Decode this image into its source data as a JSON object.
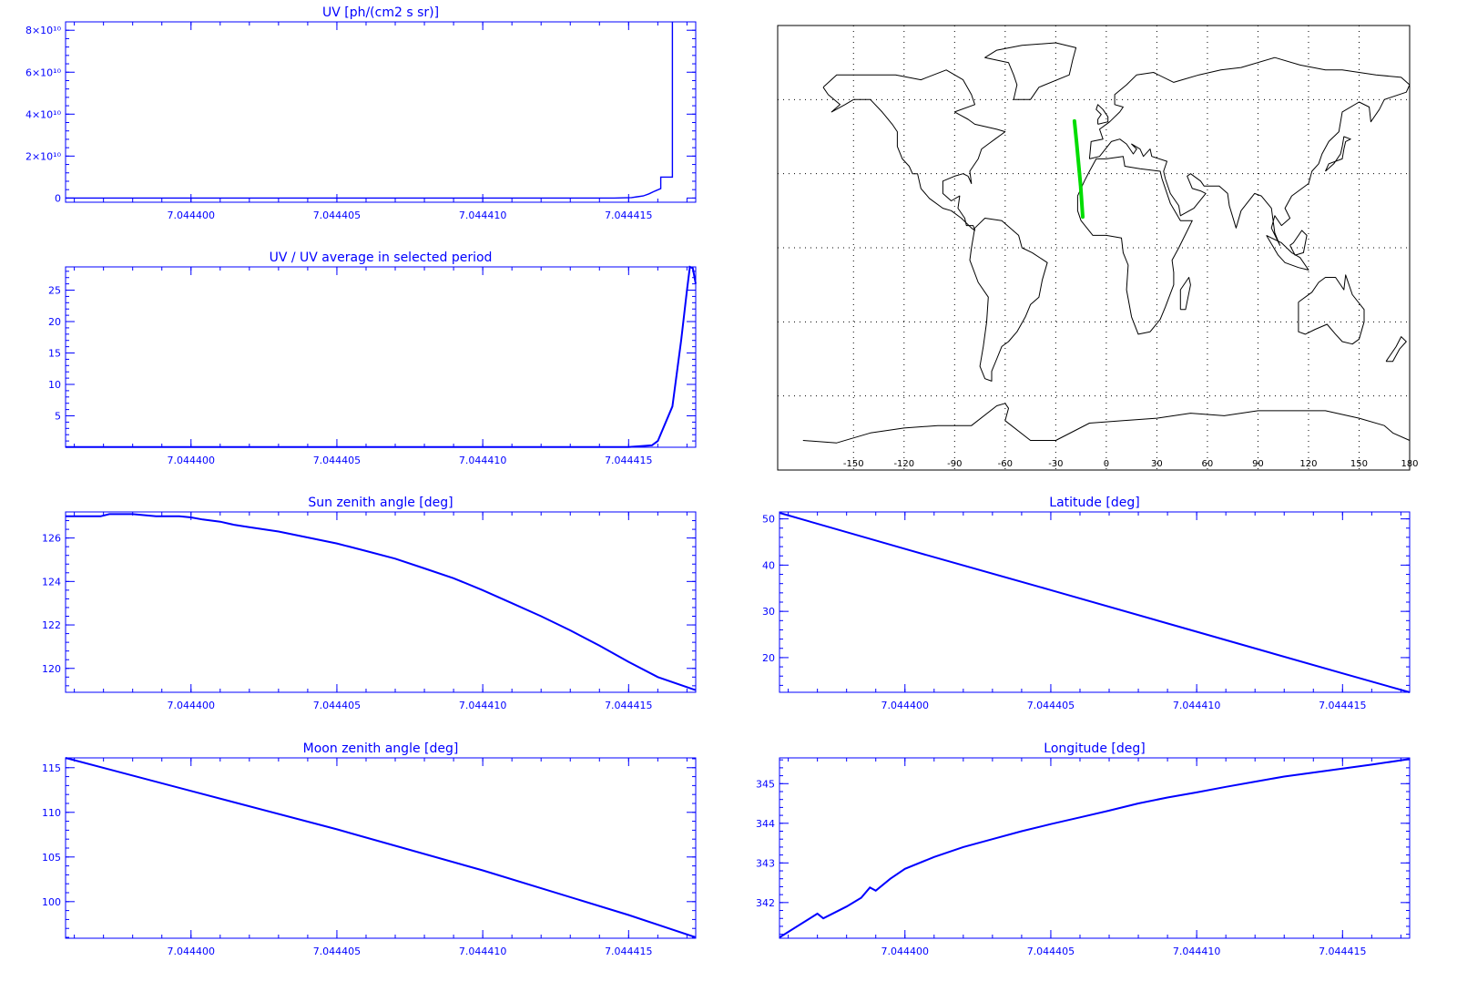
{
  "colors": {
    "axis": "#0000ff",
    "series": "#0000ff",
    "track": "#00dd00",
    "map": "#000000"
  },
  "chart_data": [
    {
      "id": "uv",
      "type": "line",
      "title": "UV [ph/(cm2 s sr)]",
      "xlim": [
        7.0443957,
        7.0444173
      ],
      "ylim": [
        -2000000000,
        84000000000
      ],
      "xticks": [
        {
          "v": 7.0444,
          "label": "7.044400"
        },
        {
          "v": 7.044405,
          "label": "7.044405"
        },
        {
          "v": 7.04441,
          "label": "7.044410"
        },
        {
          "v": 7.044415,
          "label": "7.044415"
        }
      ],
      "yticks": [
        {
          "v": 0,
          "label": "0"
        },
        {
          "v": 20000000000,
          "label": "2×10¹⁰"
        },
        {
          "v": 40000000000,
          "label": "4×10¹⁰"
        },
        {
          "v": 60000000000,
          "label": "6×10¹⁰"
        },
        {
          "v": 80000000000,
          "label": "8×10¹⁰"
        }
      ],
      "series": [
        {
          "x": [
            7.0443957,
            7.04441,
            7.0444145,
            7.0444151,
            7.0444153,
            7.0444155,
            7.0444157,
            7.0444159,
            7.0444161,
            7.0444161,
            7.0444161,
            7.0444165,
            7.0444165,
            7.0444165
          ],
          "y": [
            0,
            0,
            10000000,
            200000000,
            600000000,
            1000000000,
            2000000000,
            3300000000,
            4500000000,
            10000000000,
            10000000000,
            10000000000,
            84000000000,
            84000000000
          ]
        }
      ]
    },
    {
      "id": "ratio",
      "type": "line",
      "title": "UV / UV average in selected period",
      "xlim": [
        7.0443957,
        7.0444173
      ],
      "ylim": [
        0,
        28.7
      ],
      "xticks": [
        {
          "v": 7.0444,
          "label": "7.044400"
        },
        {
          "v": 7.044405,
          "label": "7.044405"
        },
        {
          "v": 7.04441,
          "label": "7.044410"
        },
        {
          "v": 7.044415,
          "label": "7.044415"
        }
      ],
      "yticks": [
        {
          "v": 5,
          "label": "5"
        },
        {
          "v": 10,
          "label": "10"
        },
        {
          "v": 15,
          "label": "15"
        },
        {
          "v": 20,
          "label": "20"
        },
        {
          "v": 25,
          "label": "25"
        }
      ],
      "series": [
        {
          "x": [
            7.0443957,
            7.044415,
            7.0444158,
            7.044416,
            7.0444165,
            7.0444168,
            7.044417,
            7.0444171,
            7.0444172,
            7.0444173
          ],
          "y": [
            0.05,
            0.05,
            0.3,
            1.0,
            6.5,
            17,
            25,
            28.7,
            28.5,
            26
          ]
        }
      ]
    },
    {
      "id": "sza",
      "type": "line",
      "title": "Sun zenith angle [deg]",
      "xlim": [
        7.0443957,
        7.0444173
      ],
      "ylim": [
        118.9,
        127.2
      ],
      "xticks": [
        {
          "v": 7.0444,
          "label": "7.044400"
        },
        {
          "v": 7.044405,
          "label": "7.044405"
        },
        {
          "v": 7.04441,
          "label": "7.044410"
        },
        {
          "v": 7.044415,
          "label": "7.044415"
        }
      ],
      "yticks": [
        {
          "v": 120,
          "label": "120"
        },
        {
          "v": 122,
          "label": "122"
        },
        {
          "v": 124,
          "label": "124"
        },
        {
          "v": 126,
          "label": "126"
        }
      ],
      "series": [
        {
          "x": [
            7.0443957,
            7.0443969,
            7.0443972,
            7.044398,
            7.0443988,
            7.0443996,
            7.0444,
            7.0444004,
            7.044401,
            7.0444015,
            7.044402,
            7.044403,
            7.044405,
            7.044406,
            7.044407,
            7.044408,
            7.044409,
            7.04441,
            7.044411,
            7.044412,
            7.044413,
            7.044414,
            7.044415,
            7.044416,
            7.0444173
          ],
          "y": [
            127.0,
            127.0,
            127.1,
            127.1,
            127.0,
            127.0,
            126.95,
            126.85,
            126.75,
            126.6,
            126.5,
            126.3,
            125.75,
            125.4,
            125.05,
            124.6,
            124.15,
            123.6,
            123.0,
            122.4,
            121.75,
            121.05,
            120.3,
            119.6,
            119.0
          ]
        }
      ]
    },
    {
      "id": "lat",
      "type": "line",
      "title": "Latitude [deg]",
      "xlim": [
        7.0443957,
        7.0444173
      ],
      "ylim": [
        12.5,
        51.5
      ],
      "xticks": [
        {
          "v": 7.0444,
          "label": "7.044400"
        },
        {
          "v": 7.044405,
          "label": "7.044405"
        },
        {
          "v": 7.04441,
          "label": "7.044410"
        },
        {
          "v": 7.044415,
          "label": "7.044415"
        }
      ],
      "yticks": [
        {
          "v": 20,
          "label": "20"
        },
        {
          "v": 30,
          "label": "30"
        },
        {
          "v": 40,
          "label": "40"
        },
        {
          "v": 50,
          "label": "50"
        }
      ],
      "series": [
        {
          "x": [
            7.0443957,
            7.0444,
            7.044405,
            7.04441,
            7.044415,
            7.0444173
          ],
          "y": [
            51.3,
            43.5,
            34.6,
            25.6,
            16.6,
            12.5
          ]
        }
      ]
    },
    {
      "id": "mza",
      "type": "line",
      "title": "Moon zenith angle [deg]",
      "xlim": [
        7.0443957,
        7.0444173
      ],
      "ylim": [
        95.9,
        116.1
      ],
      "xticks": [
        {
          "v": 7.0444,
          "label": "7.044400"
        },
        {
          "v": 7.044405,
          "label": "7.044405"
        },
        {
          "v": 7.04441,
          "label": "7.044410"
        },
        {
          "v": 7.044415,
          "label": "7.044415"
        }
      ],
      "yticks": [
        {
          "v": 100,
          "label": "100"
        },
        {
          "v": 105,
          "label": "105"
        },
        {
          "v": 110,
          "label": "110"
        },
        {
          "v": 115,
          "label": "115"
        }
      ],
      "series": [
        {
          "x": [
            7.0443957,
            7.0444,
            7.044405,
            7.04441,
            7.044415,
            7.0444173
          ],
          "y": [
            116.1,
            112.4,
            108.1,
            103.5,
            98.5,
            96.0
          ]
        }
      ]
    },
    {
      "id": "lon",
      "type": "line",
      "title": "Longitude [deg]",
      "xlim": [
        7.0443957,
        7.0444173
      ],
      "ylim": [
        341.1,
        345.65
      ],
      "xticks": [
        {
          "v": 7.0444,
          "label": "7.044400"
        },
        {
          "v": 7.044405,
          "label": "7.044405"
        },
        {
          "v": 7.04441,
          "label": "7.044410"
        },
        {
          "v": 7.044415,
          "label": "7.044415"
        }
      ],
      "yticks": [
        {
          "v": 342,
          "label": "342"
        },
        {
          "v": 343,
          "label": "343"
        },
        {
          "v": 344,
          "label": "344"
        },
        {
          "v": 345,
          "label": "345"
        }
      ],
      "series": [
        {
          "x": [
            7.0443957,
            7.044397,
            7.0443972,
            7.044398,
            7.0443985,
            7.0443988,
            7.044399,
            7.0443995,
            7.0444,
            7.044401,
            7.044402,
            7.044403,
            7.044404,
            7.044405,
            7.044406,
            7.044407,
            7.044408,
            7.044409,
            7.04441,
            7.044411,
            7.044412,
            7.044413,
            7.044414,
            7.044415,
            7.044416,
            7.0444173
          ],
          "y": [
            341.12,
            341.72,
            341.6,
            341.9,
            342.12,
            342.38,
            342.3,
            342.6,
            342.85,
            343.15,
            343.4,
            343.6,
            343.8,
            343.98,
            344.15,
            344.32,
            344.5,
            344.65,
            344.78,
            344.92,
            345.05,
            345.18,
            345.28,
            345.38,
            345.48,
            345.62
          ]
        }
      ]
    },
    {
      "id": "map",
      "type": "map",
      "xlim": [
        -180,
        180
      ],
      "ylim": [
        -90,
        90
      ],
      "xticks": [
        {
          "v": -150,
          "label": "-150"
        },
        {
          "v": -120,
          "label": "-120"
        },
        {
          "v": -90,
          "label": "-90"
        },
        {
          "v": -60,
          "label": "-60"
        },
        {
          "v": -30,
          "label": "-30"
        },
        {
          "v": 0,
          "label": "0"
        },
        {
          "v": 30,
          "label": "30"
        },
        {
          "v": 60,
          "label": "60"
        },
        {
          "v": 90,
          "label": "90"
        },
        {
          "v": 120,
          "label": "120"
        },
        {
          "v": 150,
          "label": "150"
        },
        {
          "v": 180,
          "label": "180"
        }
      ],
      "grid_lat": [
        -60,
        -30,
        0,
        30,
        60
      ],
      "track": {
        "lon": [
          -18.9,
          -17.6,
          -16.4,
          -15.2,
          -14.0
        ],
        "lat": [
          51.3,
          42.5,
          33.8,
          25.0,
          12.5
        ]
      }
    }
  ]
}
